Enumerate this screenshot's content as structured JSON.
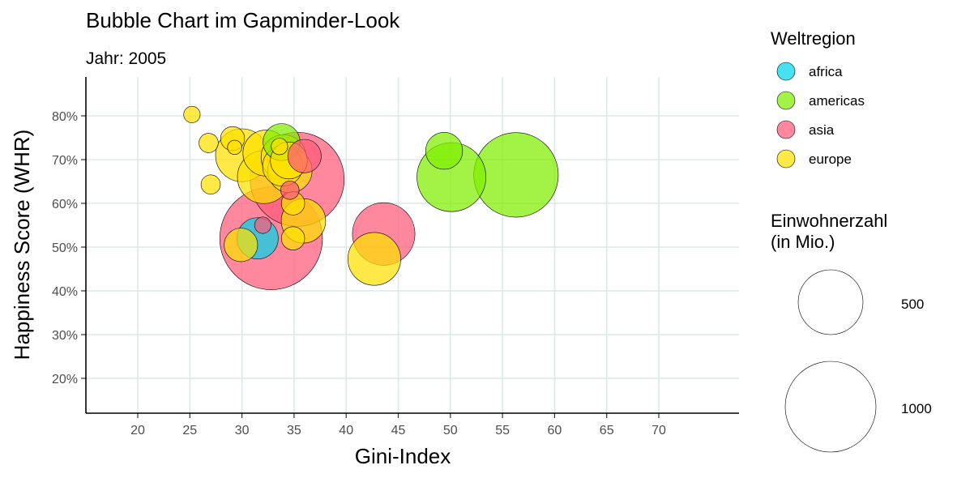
{
  "chart_data": {
    "type": "scatter",
    "title": "Bubble Chart im Gapminder-Look",
    "subtitle": "Jahr: 2005",
    "xlabel": "Gini-Index",
    "ylabel": "Happiness Score (WHR)",
    "xlim": [
      15,
      78
    ],
    "ylim": [
      12,
      88
    ],
    "x_ticks": [
      20,
      25,
      30,
      35,
      40,
      45,
      50,
      55,
      60,
      65,
      70
    ],
    "x_tick_labels": [
      "20",
      "25",
      "30",
      "35",
      "40",
      "45",
      "50",
      "55",
      "60",
      "65",
      "70"
    ],
    "y_ticks": [
      20,
      30,
      40,
      50,
      60,
      70,
      80
    ],
    "y_tick_labels": [
      "20%",
      "30%",
      "40%",
      "50%",
      "60%",
      "70%",
      "80%"
    ],
    "grid": true,
    "legend_placement": "right",
    "color_legend": {
      "title": "Weltregion",
      "items": [
        {
          "label": "africa",
          "color": "#00d5eb"
        },
        {
          "label": "americas",
          "color": "#7fef00"
        },
        {
          "label": "asia",
          "color": "#ff5a78"
        },
        {
          "label": "europe",
          "color": "#ffe000"
        }
      ]
    },
    "size_legend": {
      "title_line1": "Einwohnerzahl",
      "title_line2": "(in Mio.)",
      "items": [
        {
          "label": "500",
          "value": 500
        },
        {
          "label": "1000",
          "value": 1000
        }
      ]
    },
    "series": [
      {
        "name": "africa",
        "points": [
          {
            "x": 31.5,
            "y": 52,
            "size": 50
          }
        ]
      },
      {
        "name": "americas",
        "points": [
          {
            "x": 33.8,
            "y": 74,
            "size": 40
          },
          {
            "x": 49.4,
            "y": 72,
            "size": 40
          },
          {
            "x": 50.1,
            "y": 66,
            "size": 140
          },
          {
            "x": 56.3,
            "y": 66.5,
            "size": 210
          }
        ]
      },
      {
        "name": "asia",
        "points": [
          {
            "x": 32.0,
            "y": 55,
            "size": 8
          },
          {
            "x": 32.8,
            "y": 52,
            "size": 310
          },
          {
            "x": 34.6,
            "y": 63,
            "size": 10
          },
          {
            "x": 35.3,
            "y": 65.5,
            "size": 260
          },
          {
            "x": 36.0,
            "y": 70.8,
            "size": 33
          },
          {
            "x": 43.6,
            "y": 53,
            "size": 115
          }
        ]
      },
      {
        "name": "europe",
        "points": [
          {
            "x": 25.2,
            "y": 80.3,
            "size": 8
          },
          {
            "x": 26.8,
            "y": 73.8,
            "size": 11
          },
          {
            "x": 27.0,
            "y": 64.3,
            "size": 11
          },
          {
            "x": 29.1,
            "y": 74.8,
            "size": 17
          },
          {
            "x": 29.3,
            "y": 72.8,
            "size": 6
          },
          {
            "x": 30.0,
            "y": 71,
            "size": 82
          },
          {
            "x": 29.9,
            "y": 50.5,
            "size": 33
          },
          {
            "x": 32.3,
            "y": 71.5,
            "size": 62
          },
          {
            "x": 32.1,
            "y": 66,
            "size": 82
          },
          {
            "x": 33.6,
            "y": 73,
            "size": 8
          },
          {
            "x": 33.9,
            "y": 68.5,
            "size": 47
          },
          {
            "x": 34.0,
            "y": 70.5,
            "size": 60
          },
          {
            "x": 34.5,
            "y": 69.8,
            "size": 40
          },
          {
            "x": 34.6,
            "y": 67.5,
            "size": 58
          },
          {
            "x": 34.9,
            "y": 60,
            "size": 16
          },
          {
            "x": 34.9,
            "y": 52,
            "size": 16
          },
          {
            "x": 35.9,
            "y": 56,
            "size": 58
          },
          {
            "x": 42.7,
            "y": 47.3,
            "size": 82
          }
        ]
      }
    ]
  }
}
